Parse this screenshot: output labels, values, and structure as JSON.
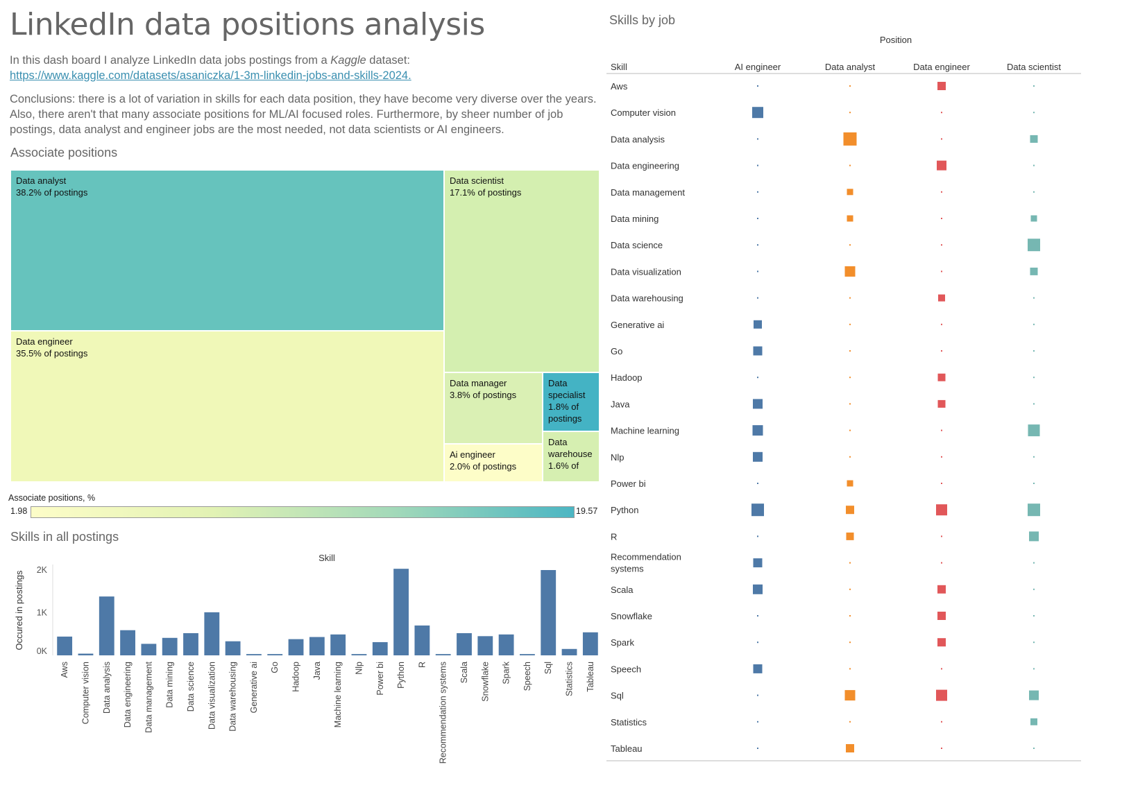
{
  "title": "LinkedIn data positions analysis",
  "intro": {
    "text": "In this dash board I analyze LinkedIn data jobs postings from a",
    "source_word": "Kaggle",
    "after": "dataset:",
    "link": "https://www.kaggle.com/datasets/asaniczka/1-3m-linkedin-jobs-and-skills-2024."
  },
  "conclusions": "Conclusions: there is a lot of variation in skills for each data position, they have become very diverse over the years. Also, there aren't that many associate positions for ML/AI focused roles. Furthermore, by sheer number of job postings, data analyst and engineer jobs are the most needed, not data scientists or AI engineers.",
  "treemap": {
    "title": "Associate positions",
    "legend_title": "Associate positions, %",
    "legend_min": "1.98",
    "legend_max": "19.57",
    "colors": [
      "#fdfdc8",
      "#4cb6c3"
    ],
    "cells": [
      {
        "name": "Data analyst",
        "label": "38.2% of postings",
        "value": 38.2
      },
      {
        "name": "Data engineer",
        "label": "35.5% of postings",
        "value": 35.5
      },
      {
        "name": "Data scientist",
        "label": "17.1% of postings",
        "value": 17.1
      },
      {
        "name": "Data manager",
        "label": "3.8% of postings",
        "value": 3.8
      },
      {
        "name": "Ai engineer",
        "label": "2.0% of postings",
        "value": 2.0
      },
      {
        "name": "Data specialist",
        "label": "1.8% of postings",
        "value": 1.8
      },
      {
        "name": "Data warehouse",
        "label": "1.6% of",
        "value": 1.6
      }
    ]
  },
  "chart_data": [
    {
      "type": "bar",
      "title": "Skills in all postings",
      "xlabel": "Skill",
      "ylabel": "Occured in postings",
      "color": "#4e79a7",
      "ylim": [
        0,
        2000
      ],
      "ytick_labels": [
        "0K",
        "1K",
        "2K"
      ],
      "yticks": [
        0,
        1000,
        2000
      ],
      "categories": [
        "Aws",
        "Computer vision",
        "Data analysis",
        "Data engineering",
        "Data management",
        "Data mining",
        "Data science",
        "Data visualization",
        "Data warehousing",
        "Generative ai",
        "Go",
        "Hadoop",
        "Java",
        "Machine learning",
        "Nlp",
        "Power bi",
        "Python",
        "R",
        "Recommendation systems",
        "Scala",
        "Snowflake",
        "Spark",
        "Speech",
        "Sql",
        "Statistics",
        "Tableau"
      ],
      "values": [
        440,
        40,
        1380,
        590,
        270,
        410,
        520,
        1010,
        330,
        30,
        30,
        380,
        430,
        490,
        30,
        310,
        2030,
        700,
        30,
        520,
        450,
        490,
        30,
        2000,
        150,
        540
      ]
    },
    {
      "type": "heatmap",
      "title": "Skills by job",
      "xlabel": "Position",
      "ylabel": "Skill",
      "columns": [
        "AI engineer",
        "Data analyst",
        "Data engineer",
        "Data scientist"
      ],
      "column_colors": [
        "#4e79a7",
        "#f28e2b",
        "#e15759",
        "#76b7b2"
      ],
      "rows": [
        "Aws",
        "Computer vision",
        "Data analysis",
        "Data engineering",
        "Data management",
        "Data mining",
        "Data science",
        "Data visualization",
        "Data warehousing",
        "Generative ai",
        "Go",
        "Hadoop",
        "Java",
        "Machine learning",
        "Nlp",
        "Power bi",
        "Python",
        "R",
        "Recommendation systems",
        "Scala",
        "Snowflake",
        "Spark",
        "Speech",
        "Sql",
        "Statistics",
        "Tableau"
      ],
      "values": [
        [
          0,
          0,
          12,
          0
        ],
        [
          16,
          0,
          0,
          0
        ],
        [
          0,
          19,
          0,
          11
        ],
        [
          0,
          0,
          14,
          0
        ],
        [
          0,
          9,
          0,
          0
        ],
        [
          0,
          9,
          0,
          9
        ],
        [
          0,
          0,
          0,
          18
        ],
        [
          0,
          15,
          0,
          11
        ],
        [
          0,
          0,
          10,
          0
        ],
        [
          12,
          0,
          0,
          0
        ],
        [
          13,
          0,
          0,
          0
        ],
        [
          0,
          0,
          11,
          0
        ],
        [
          14,
          0,
          11,
          0
        ],
        [
          15,
          0,
          0,
          17
        ],
        [
          14,
          0,
          0,
          0
        ],
        [
          0,
          9,
          0,
          0
        ],
        [
          18,
          12,
          16,
          18
        ],
        [
          0,
          11,
          0,
          14
        ],
        [
          13,
          0,
          0,
          0
        ],
        [
          14,
          0,
          12,
          0
        ],
        [
          0,
          0,
          12,
          0
        ],
        [
          0,
          0,
          12,
          0
        ],
        [
          13,
          0,
          0,
          0
        ],
        [
          0,
          15,
          16,
          14
        ],
        [
          0,
          0,
          0,
          10
        ],
        [
          0,
          12,
          0,
          0
        ]
      ]
    }
  ]
}
